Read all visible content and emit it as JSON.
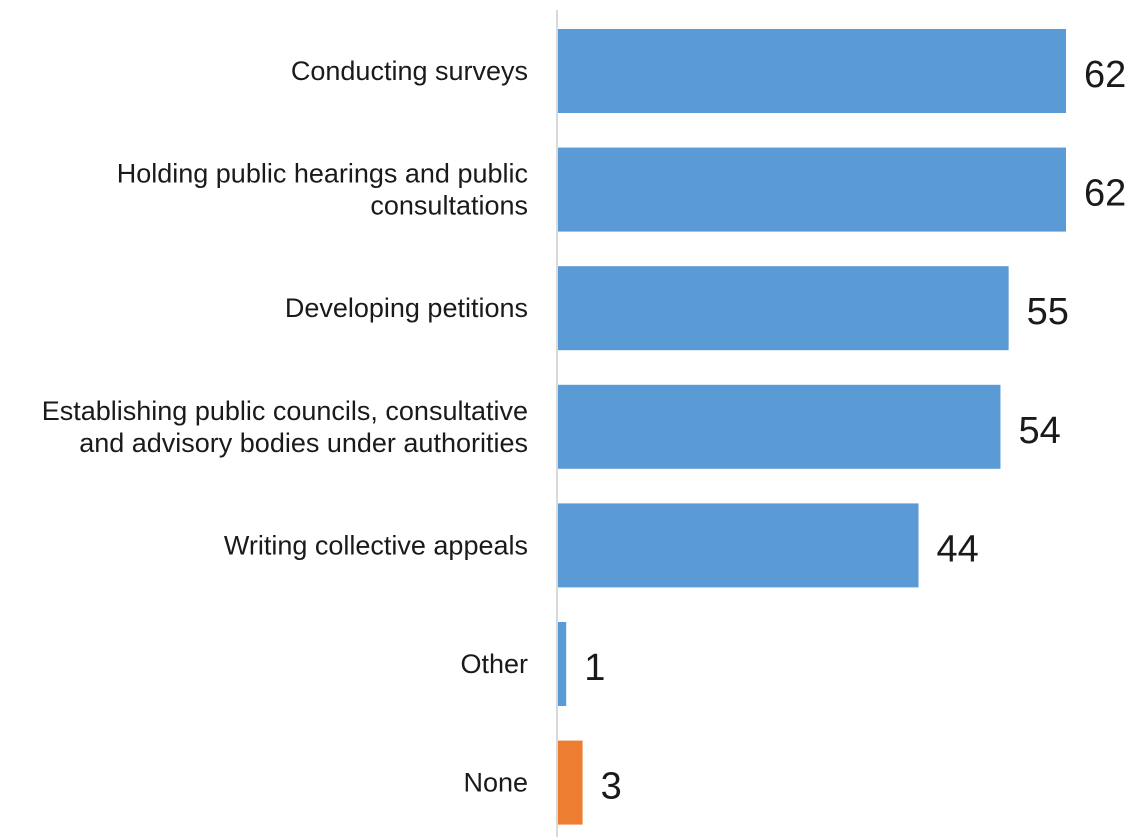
{
  "chart_data": {
    "type": "bar",
    "orientation": "horizontal",
    "title": "",
    "xlabel": "",
    "ylabel": "",
    "categories": [
      [
        "Conducting surveys"
      ],
      [
        "Holding public hearings and public",
        "consultations"
      ],
      [
        "Developing petitions"
      ],
      [
        "Establishing public councils, consultative",
        "and advisory bodies under authorities"
      ],
      [
        "Writing collective appeals"
      ],
      [
        "Other"
      ],
      [
        "None"
      ]
    ],
    "values": [
      62,
      62,
      55,
      54,
      44,
      1,
      3
    ],
    "value_labels": [
      "62",
      "62",
      "55",
      "54",
      "44",
      "1",
      "3"
    ],
    "bar_colors": [
      "#5b9bd5",
      "#5b9bd5",
      "#5b9bd5",
      "#5b9bd5",
      "#5b9bd5",
      "#5b9bd5",
      "#ed7d31"
    ],
    "xlim": [
      0,
      62
    ],
    "grid": false,
    "legend": "none"
  }
}
